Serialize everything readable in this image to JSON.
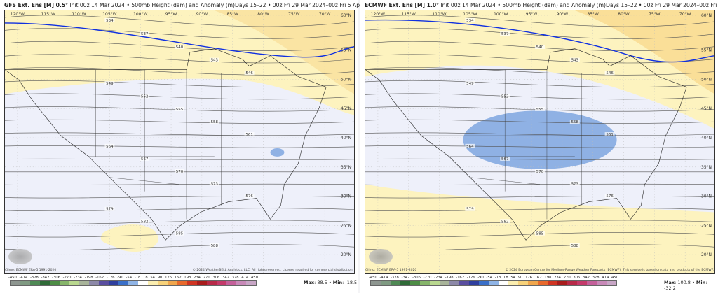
{
  "panels": [
    {
      "model": "GFS Ext. Ens [M] 0.5°",
      "init": " Init 00z 14 Mar 2024 • 500mb Height (dam) and Anomaly (m)",
      "period": "Days 15–22 • 00z Fri 29 Mar 2024–00z Fri 5 Apr 2024",
      "clim": "Climo: ECMWF ERA-5 1991-2020",
      "copyright": "© 2024 WeatherBELL Analytics, LLC. All rights reserved. License required for commercial distribution.",
      "max_label": "Max",
      "max": "88.5",
      "min_label": "Min",
      "min": "-18.5",
      "contours": [
        "534",
        "537",
        "540",
        "543",
        "546",
        "549",
        "552",
        "555",
        "558",
        "561",
        "564",
        "567",
        "570",
        "573",
        "576",
        "579",
        "582",
        "585",
        "588"
      ]
    },
    {
      "model": "ECMWF Ext. Ens [M] 1.0°",
      "init": " Init 00z 14 Mar 2024 • 500mb Height (dam) and Anomaly (m)",
      "period": "Days 15–22 • 00z Fri 29 Mar 2024–00z Fri 5 Apr 2024",
      "clim": "Climo: ECMWF ERA-5 1991-2020",
      "copyright": "© 2024 European Centre for Medium-Range Weather Forecasts (ECMWF). This service is based on data and products of the ECMWF.",
      "max_label": "Max",
      "max": "100.8",
      "min_label": "Min",
      "min": "-32.2",
      "contours": [
        "534",
        "537",
        "540",
        "543",
        "546",
        "549",
        "552",
        "555",
        "558",
        "561",
        "564",
        "567",
        "570",
        "573",
        "576",
        "579",
        "582",
        "585",
        "588"
      ]
    }
  ],
  "lon_labels": [
    "120°W",
    "115°W",
    "110°W",
    "105°W",
    "100°W",
    "95°W",
    "90°W",
    "85°W",
    "80°W",
    "75°W",
    "70°W"
  ],
  "lat_labels": [
    "60°N",
    "55°N",
    "50°N",
    "45°N",
    "40°N",
    "35°N",
    "30°N",
    "25°N",
    "20°N"
  ],
  "colorbar": {
    "ticks": [
      "-450",
      "-414",
      "-378",
      "-342",
      "-306",
      "-270",
      "-234",
      "-198",
      "-162",
      "-126",
      "-90",
      "-54",
      "-18",
      "18",
      "54",
      "90",
      "126",
      "162",
      "198",
      "234",
      "270",
      "306",
      "342",
      "378",
      "414",
      "450"
    ],
    "colors": [
      "#8e9690",
      "#7f9a82",
      "#4f8a55",
      "#2f6b38",
      "#4d8d45",
      "#86b56a",
      "#b9d88f",
      "#a8b49a",
      "#8c88a8",
      "#5a4ea0",
      "#2f3f9e",
      "#3a6fc8",
      "#8fb4e6",
      "#ffffff",
      "#fbeeb0",
      "#f7d27a",
      "#f0a64c",
      "#e8692c",
      "#cf3422",
      "#a81c1c",
      "#b82a48",
      "#c43a6a",
      "#c4609a",
      "#c889b8",
      "#c8a6c6"
    ]
  },
  "colors": {
    "yellow": "#fdf3bf",
    "orange": "#f8d587",
    "background": "#eef0fa",
    "negative_anomaly": "#8fb1e4",
    "ridge_line": "#1030e0"
  }
}
